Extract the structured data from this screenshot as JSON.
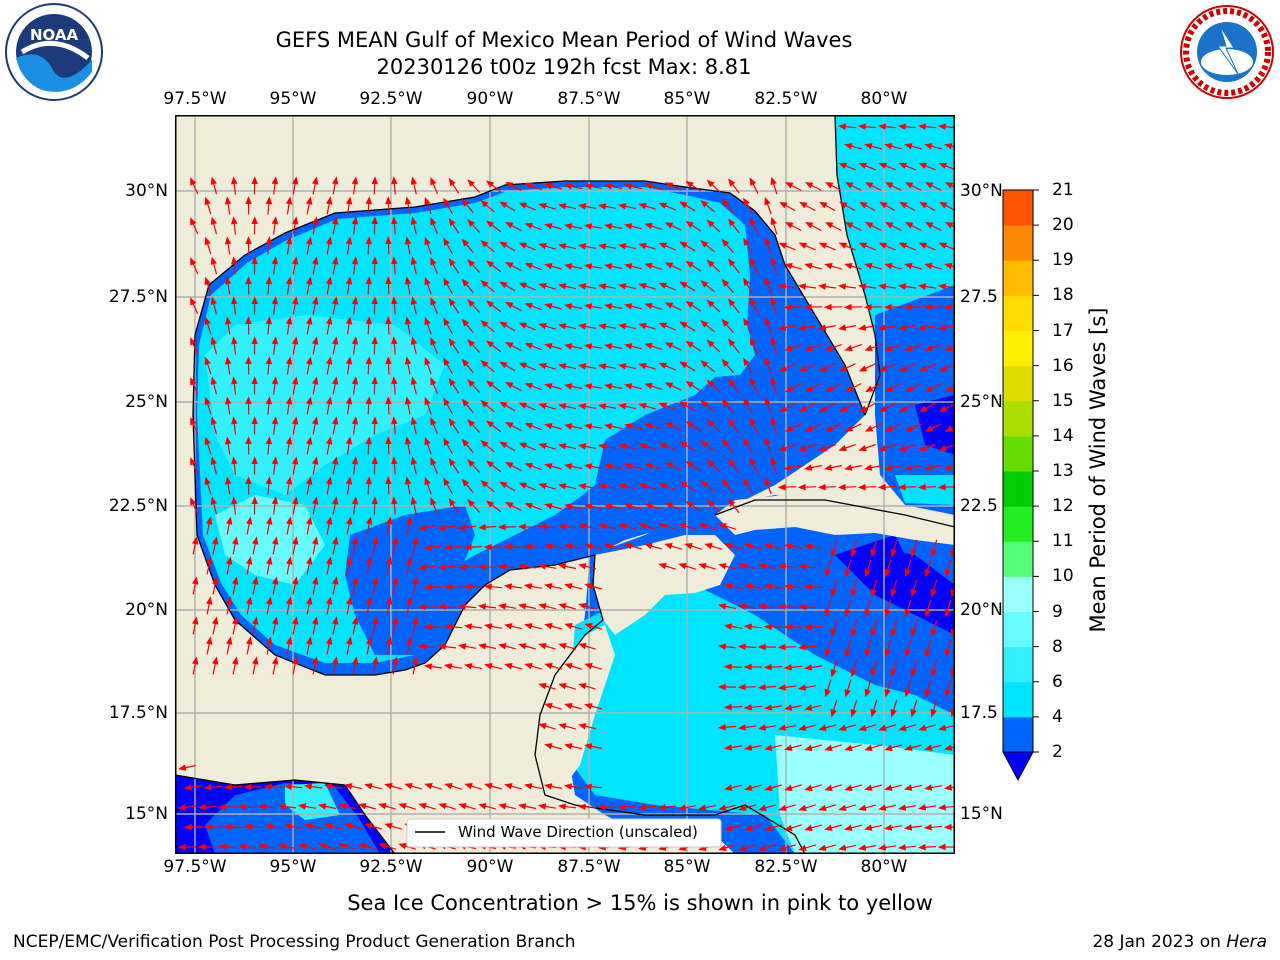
{
  "title": {
    "line1": "GEFS MEAN Gulf of Mexico Mean Period of Wind Waves",
    "line2": "20230126 t00z 192h fcst   Max: 8.81"
  },
  "map": {
    "lon_ticks": [
      "97.5°W",
      "95°W",
      "92.5°W",
      "90°W",
      "87.5°W",
      "85°W",
      "82.5°W",
      "80°W"
    ],
    "lat_ticks_left": [
      "30°N",
      "27.5°N",
      "25°N",
      "22.5°N",
      "20°N",
      "17.5°N",
      "15°N"
    ],
    "lat_ticks_right": [
      "30°N",
      "27.5",
      "25°N",
      "22.5",
      "20°N",
      "17.5",
      "15°N"
    ],
    "legend_label": "Wind Wave Direction (unscaled)",
    "colors": {
      "land": "#efecd9",
      "coast": "#000000",
      "arrow": "#ff0000",
      "grid": "#b0b0b0"
    }
  },
  "colorbar": {
    "label": "Mean Period of Wind Waves [s]",
    "ticks": [
      "2",
      "4",
      "6",
      "8",
      "9",
      "10",
      "11",
      "12",
      "13",
      "14",
      "15",
      "16",
      "17",
      "18",
      "19",
      "20",
      "21"
    ],
    "colors": [
      "#0064ff",
      "#00e5ff",
      "#33f0ff",
      "#66fbff",
      "#99ffff",
      "#55ff77",
      "#22ee22",
      "#00cc00",
      "#66dd00",
      "#aadd00",
      "#dddd00",
      "#ffee00",
      "#ffdd00",
      "#ffbb00",
      "#ff8800",
      "#ff5500",
      "#ff2a00",
      "#ff0000"
    ],
    "under_color": "#0000ff"
  },
  "note": "Sea Ice Concentration > 15% is shown in pink to yellow",
  "footer": {
    "left": "NCEP/EMC/Verification Post Processing Product Generation Branch",
    "date": "28 Jan 2023 on",
    "machine": "Hera"
  },
  "logos": {
    "left_text": "NOAA",
    "right_text": "NATIONAL WEATHER SERVICE"
  }
}
